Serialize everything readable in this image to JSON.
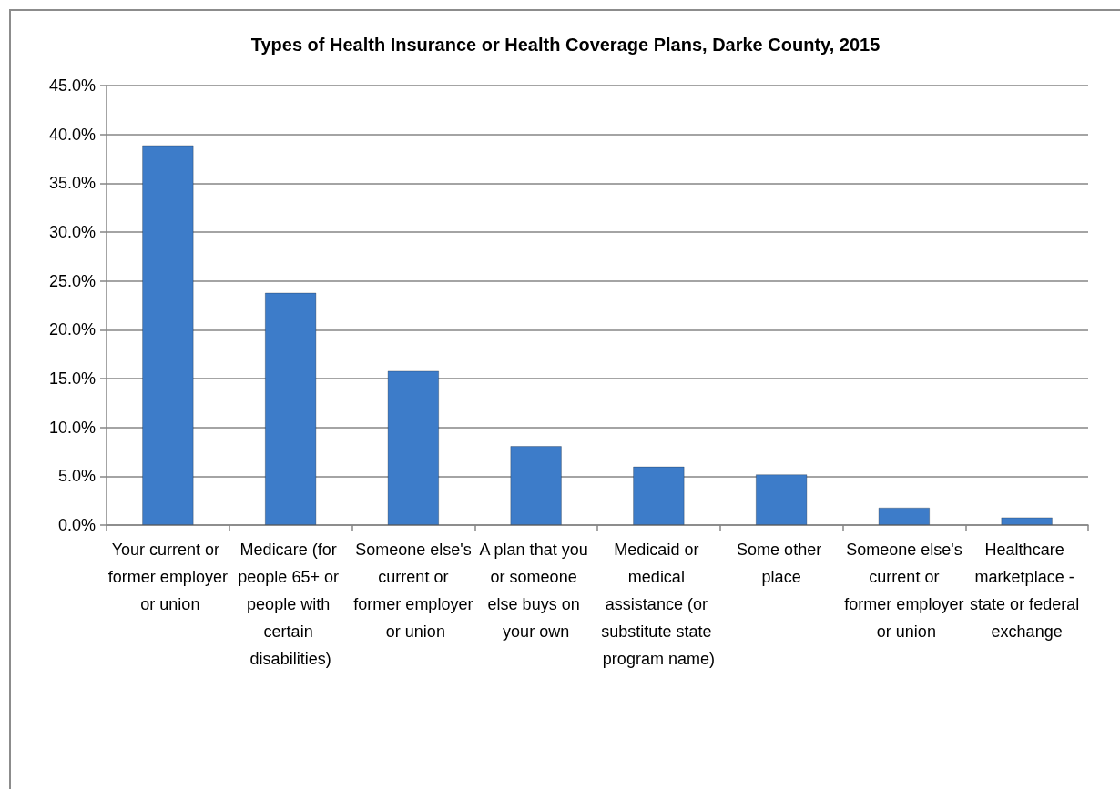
{
  "chart_data": {
    "type": "bar",
    "title": "Types of Health Insurance or Health Coverage Plans, Darke County, 2015",
    "categories": [
      "Your current or former employer or union",
      "Medicare (for people 65+ or people with certain disabilities)",
      "Someone else's current or former employer or union",
      "A plan that you or someone else buys on your own",
      "Medicaid or medical assistance (or substitute state program name)",
      "Some other place",
      "Someone else's current or former employer or union",
      "Healthcare marketplace - state or federal exchange"
    ],
    "values": [
      38.9,
      23.8,
      15.8,
      8.1,
      6.0,
      5.2,
      1.8,
      0.8
    ],
    "color": "#3d7cc9",
    "ylim": [
      0,
      45
    ],
    "yticks": [
      {
        "value": 0,
        "label": "0.0%"
      },
      {
        "value": 5,
        "label": "5.0%"
      },
      {
        "value": 10,
        "label": "10.0%"
      },
      {
        "value": 15,
        "label": "15.0%"
      },
      {
        "value": 20,
        "label": "20.0%"
      },
      {
        "value": 25,
        "label": "25.0%"
      },
      {
        "value": 30,
        "label": "30.0%"
      },
      {
        "value": 35,
        "label": "35.0%"
      },
      {
        "value": 40,
        "label": "40.0%"
      },
      {
        "value": 45,
        "label": "45.0%"
      }
    ],
    "grid": "y"
  }
}
